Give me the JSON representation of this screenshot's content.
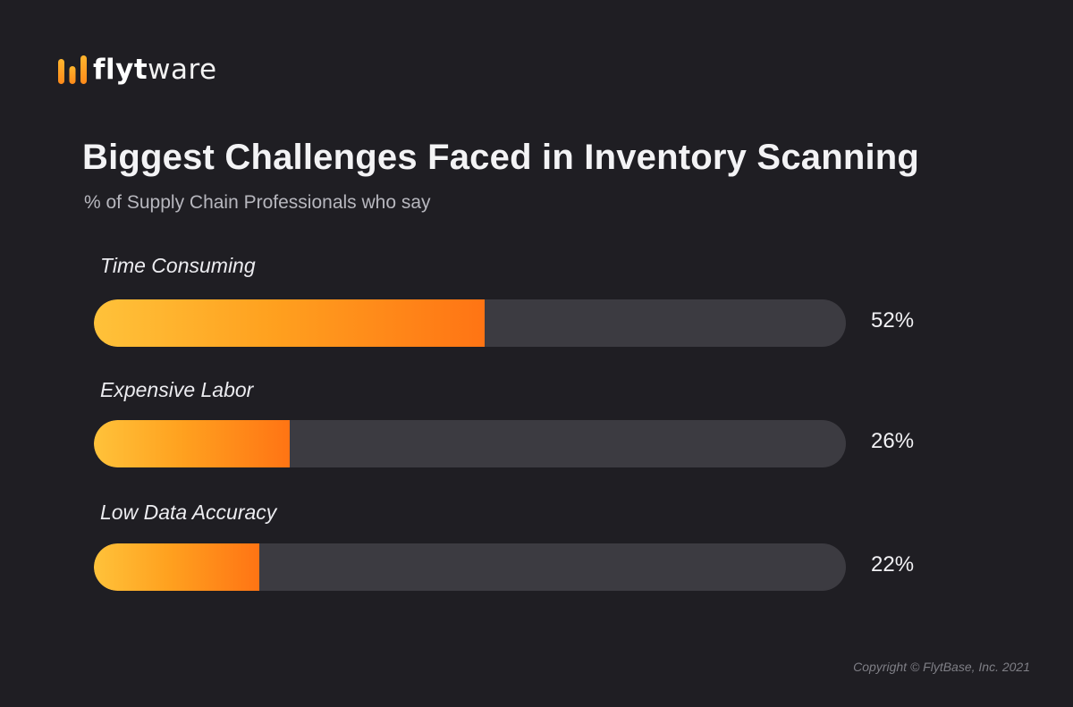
{
  "brand": {
    "name_bold": "flyt",
    "name_light": "ware",
    "logo_icon": "bar-logo-icon",
    "accent_color": "#ff9a1f"
  },
  "chart_data": {
    "type": "bar",
    "orientation": "horizontal",
    "title": "Biggest Challenges Faced in Inventory Scanning",
    "subtitle": "% of Supply Chain Professionals who say",
    "categories": [
      "Time Consuming",
      "Expensive Labor",
      "Low Data Accuracy"
    ],
    "values": [
      52,
      26,
      22
    ],
    "value_labels": [
      "52%",
      "26%",
      "22%"
    ],
    "xlim": [
      0,
      100
    ],
    "grid": false,
    "legend": "none",
    "colors": {
      "fill_start": "#ffc23a",
      "fill_end": "#ff7414",
      "track": "#3c3b41"
    }
  },
  "footer": {
    "copyright": "Copyright © FlytBase, Inc. 2021"
  }
}
